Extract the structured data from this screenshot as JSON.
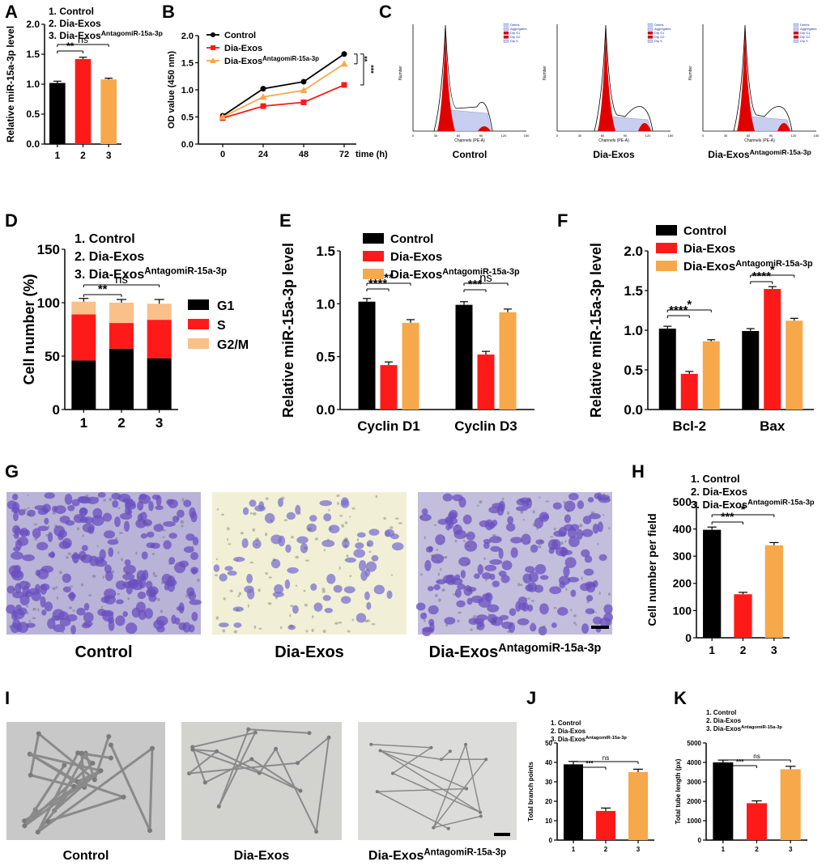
{
  "colors": {
    "control": "#000000",
    "dia": "#ff1a1a",
    "antago": "#f7a84a",
    "g1": "#000000",
    "s": "#ff1a1a",
    "g2m": "#f9c08a",
    "stain": "#6a4fc0",
    "flow_fill": "#e00000",
    "flow_s": "#c8cef0"
  },
  "panels": {
    "A": {
      "letter": "A",
      "legend": [
        {
          "text": "1. Control",
          "sup": ""
        },
        {
          "text": "2. Dia-Exos",
          "sup": ""
        },
        {
          "text": "3. Dia-Exos",
          "sup": "AntagomiR-15a-3p"
        }
      ]
    },
    "B": {
      "letter": "B"
    },
    "C": {
      "letter": "C",
      "plots": [
        {
          "label": "Control",
          "sup": "",
          "xlabel": "Channels (PE-A)",
          "ylabel": "Number",
          "legend": [
            "Debris",
            "Aggregates",
            "Dip G1",
            "Dip G2",
            "Dip S"
          ]
        },
        {
          "label": "Dia-Exos",
          "sup": "",
          "xlabel": "Channels (PE-A)",
          "ylabel": "Number",
          "legend": [
            "Debris",
            "Aggregates",
            "Dip G1",
            "Dip G2",
            "Dip S"
          ]
        },
        {
          "label": "Dia-Exos",
          "sup": "AntagomiR-15a-3p",
          "xlabel": "Channels (PE-A)",
          "ylabel": "Number",
          "legend": [
            "Debris",
            "Aggregates",
            "Dip G1",
            "Dip G2",
            "Dip S"
          ]
        }
      ]
    },
    "D": {
      "letter": "D",
      "legend": [
        {
          "text": "1. Control",
          "sup": ""
        },
        {
          "text": "2. Dia-Exos",
          "sup": ""
        },
        {
          "text": "3. Dia-Exos",
          "sup": "AntagomiR-15a-3p"
        }
      ]
    },
    "E": {
      "letter": "E"
    },
    "F": {
      "letter": "F"
    },
    "G": {
      "letter": "G",
      "photos": [
        {
          "label": "Control",
          "sup": ""
        },
        {
          "label": "Dia-Exos",
          "sup": ""
        },
        {
          "label": "Dia-Exos",
          "sup": "AntagomiR-15a-3p"
        }
      ]
    },
    "H": {
      "letter": "H",
      "legend": [
        {
          "text": "1. Control",
          "sup": ""
        },
        {
          "text": "2. Dia-Exos",
          "sup": ""
        },
        {
          "text": "3. Dia-Exos",
          "sup": "AntagomiR-15a-3p"
        }
      ]
    },
    "I": {
      "letter": "I",
      "photos": [
        {
          "label": "Control",
          "sup": ""
        },
        {
          "label": "Dia-Exos",
          "sup": ""
        },
        {
          "label": "Dia-Exos",
          "sup": "AntagomiR-15a-3p"
        }
      ]
    },
    "J": {
      "letter": "J",
      "legend": [
        {
          "text": "1. Control",
          "sup": ""
        },
        {
          "text": "2. Dia-Exos",
          "sup": ""
        },
        {
          "text": "3. Dia-Exos",
          "sup": "AntagomiR-15a-3p"
        }
      ]
    },
    "K": {
      "letter": "K",
      "legend": [
        {
          "text": "1. Control",
          "sup": ""
        },
        {
          "text": "2. Dia-Exos",
          "sup": ""
        },
        {
          "text": "3. Dia-Exos",
          "sup": "AntagomiR-15a-3p"
        }
      ]
    }
  },
  "chart_data": [
    {
      "id": "A",
      "type": "bar",
      "categories": [
        "1",
        "2",
        "3"
      ],
      "values": [
        1.02,
        1.42,
        1.08
      ],
      "errors": [
        0.03,
        0.03,
        0.02
      ],
      "ylabel": "Relative miR-15a-3p level",
      "ylim": [
        0,
        2.0
      ],
      "yticks": [
        "0.0",
        "0.5",
        "1.0",
        "1.5",
        "2.0"
      ],
      "yticks_v": [
        0,
        0.5,
        1.0,
        1.5,
        2.0
      ],
      "sig": [
        {
          "a": 0,
          "b": 1,
          "text": "**"
        },
        {
          "a": 0,
          "b": 2,
          "text": "ns"
        }
      ]
    },
    {
      "id": "B",
      "type": "line",
      "x": [
        0,
        24,
        48,
        72
      ],
      "xlabel": "time (h)",
      "ylabel": "OD value (450 nm)",
      "ylim": [
        0,
        2.0
      ],
      "yticks": [
        "0.0",
        "0.5",
        "1.0",
        "1.5",
        "2.0"
      ],
      "yticks_v": [
        0,
        0.5,
        1.0,
        1.5,
        2.0
      ],
      "series": [
        {
          "name": "Control",
          "sup": "",
          "values": [
            0.52,
            1.02,
            1.15,
            1.66
          ],
          "errors": [
            0.05,
            0.05,
            0.03,
            0.04
          ]
        },
        {
          "name": "Dia-Exos",
          "sup": "",
          "values": [
            0.48,
            0.7,
            0.77,
            1.09
          ],
          "errors": [
            0.03,
            0.03,
            0.04,
            0.04
          ]
        },
        {
          "name": "Dia-Exos",
          "sup": "AntagomiR-15a-3p",
          "values": [
            0.5,
            0.87,
            0.99,
            1.48
          ],
          "errors": [
            0.03,
            0.03,
            0.02,
            0.03
          ]
        }
      ],
      "sig": [
        {
          "text": "**"
        },
        {
          "text": "***"
        }
      ]
    },
    {
      "id": "D",
      "type": "bar",
      "stacked": true,
      "categories": [
        "1",
        "2",
        "3"
      ],
      "ylabel": "Cell number (%)",
      "ylim": [
        0,
        150
      ],
      "yticks": [
        "0",
        "50",
        "100",
        "150"
      ],
      "yticks_v": [
        0,
        50,
        100,
        150
      ],
      "series": [
        {
          "name": "G1",
          "values": [
            46,
            57,
            48
          ],
          "errors": [
            3,
            3,
            3
          ]
        },
        {
          "name": "S",
          "values": [
            43,
            24,
            36
          ],
          "errors": [
            3,
            3,
            3
          ]
        },
        {
          "name": "G2/M",
          "values": [
            12,
            19,
            15
          ],
          "errors": [
            3,
            3,
            4
          ]
        }
      ],
      "sig": [
        {
          "a": 0,
          "b": 1,
          "text": "**"
        },
        {
          "a": 0,
          "b": 2,
          "text": "ns"
        }
      ]
    },
    {
      "id": "E",
      "type": "bar",
      "categories": [
        "Cyclin D1",
        "Cyclin D3"
      ],
      "ylabel": "Relative miR-15a-3p level",
      "ylim": [
        0,
        1.5
      ],
      "yticks": [
        "0.0",
        "0.5",
        "1.0",
        "1.5"
      ],
      "yticks_v": [
        0,
        0.5,
        1.0,
        1.5
      ],
      "series": [
        {
          "name": "Control",
          "sup": "",
          "values": [
            1.02,
            0.99
          ],
          "errors": [
            0.03,
            0.03
          ]
        },
        {
          "name": "Dia-Exos",
          "sup": "",
          "values": [
            0.42,
            0.52
          ],
          "errors": [
            0.03,
            0.03
          ]
        },
        {
          "name": "Dia-Exos",
          "sup": "AntagomiR-15a-3p",
          "values": [
            0.82,
            0.92
          ],
          "errors": [
            0.03,
            0.03
          ]
        }
      ],
      "sig": [
        {
          "g": 0,
          "a": 0,
          "b": 1,
          "text": "****"
        },
        {
          "g": 0,
          "a": 0,
          "b": 2,
          "text": "**"
        },
        {
          "g": 1,
          "a": 0,
          "b": 1,
          "text": "***"
        },
        {
          "g": 1,
          "a": 0,
          "b": 2,
          "text": "ns"
        }
      ]
    },
    {
      "id": "F",
      "type": "bar",
      "categories": [
        "Bcl-2",
        "Bax"
      ],
      "ylabel": "Relative miR-15a-3p level",
      "ylim": [
        0,
        2.0
      ],
      "yticks": [
        "0.0",
        "0.5",
        "1.0",
        "1.5",
        "2.0"
      ],
      "yticks_v": [
        0,
        0.5,
        1.0,
        1.5,
        2.0
      ],
      "series": [
        {
          "name": "Control",
          "sup": "",
          "values": [
            1.02,
            0.99
          ],
          "errors": [
            0.03,
            0.03
          ]
        },
        {
          "name": "Dia-Exos",
          "sup": "",
          "values": [
            0.45,
            1.52
          ],
          "errors": [
            0.03,
            0.03
          ]
        },
        {
          "name": "Dia-Exos",
          "sup": "AntagomiR-15a-3p",
          "values": [
            0.86,
            1.12
          ],
          "errors": [
            0.02,
            0.03
          ]
        }
      ],
      "sig": [
        {
          "g": 0,
          "a": 0,
          "b": 1,
          "text": "****"
        },
        {
          "g": 0,
          "a": 0,
          "b": 2,
          "text": "*"
        },
        {
          "g": 1,
          "a": 0,
          "b": 1,
          "text": "****"
        },
        {
          "g": 1,
          "a": 0,
          "b": 2,
          "text": "*"
        }
      ]
    },
    {
      "id": "H",
      "type": "bar",
      "categories": [
        "1",
        "2",
        "3"
      ],
      "values": [
        397,
        160,
        340
      ],
      "errors": [
        10,
        7,
        10
      ],
      "ylabel": "Cell number per field",
      "ylim": [
        0,
        500
      ],
      "yticks": [
        "0",
        "100",
        "200",
        "300",
        "400",
        "500"
      ],
      "yticks_v": [
        0,
        100,
        200,
        300,
        400,
        500
      ],
      "sig": [
        {
          "a": 0,
          "b": 1,
          "text": "***"
        },
        {
          "a": 0,
          "b": 2,
          "text": "*"
        }
      ]
    },
    {
      "id": "J",
      "type": "bar",
      "categories": [
        "1",
        "2",
        "3"
      ],
      "values": [
        39,
        15,
        35
      ],
      "errors": [
        1.5,
        1.5,
        1.5
      ],
      "ylabel": "Total branch points",
      "ylim": [
        0,
        50
      ],
      "yticks": [
        "0",
        "10",
        "20",
        "30",
        "40",
        "50"
      ],
      "yticks_v": [
        0,
        10,
        20,
        30,
        40,
        50
      ],
      "sig": [
        {
          "a": 0,
          "b": 1,
          "text": "***"
        },
        {
          "a": 0,
          "b": 2,
          "text": "ns"
        }
      ]
    },
    {
      "id": "K",
      "type": "bar",
      "categories": [
        "1",
        "2",
        "3"
      ],
      "values": [
        4000,
        1900,
        3650
      ],
      "errors": [
        120,
        120,
        150
      ],
      "ylabel": "Total tube length (px)",
      "ylim": [
        0,
        5000
      ],
      "yticks": [
        "0",
        "1000",
        "2000",
        "3000",
        "4000",
        "5000"
      ],
      "yticks_v": [
        0,
        1000,
        2000,
        3000,
        4000,
        5000
      ],
      "sig": [
        {
          "a": 0,
          "b": 1,
          "text": "***"
        },
        {
          "a": 0,
          "b": 2,
          "text": "ns"
        }
      ]
    }
  ]
}
